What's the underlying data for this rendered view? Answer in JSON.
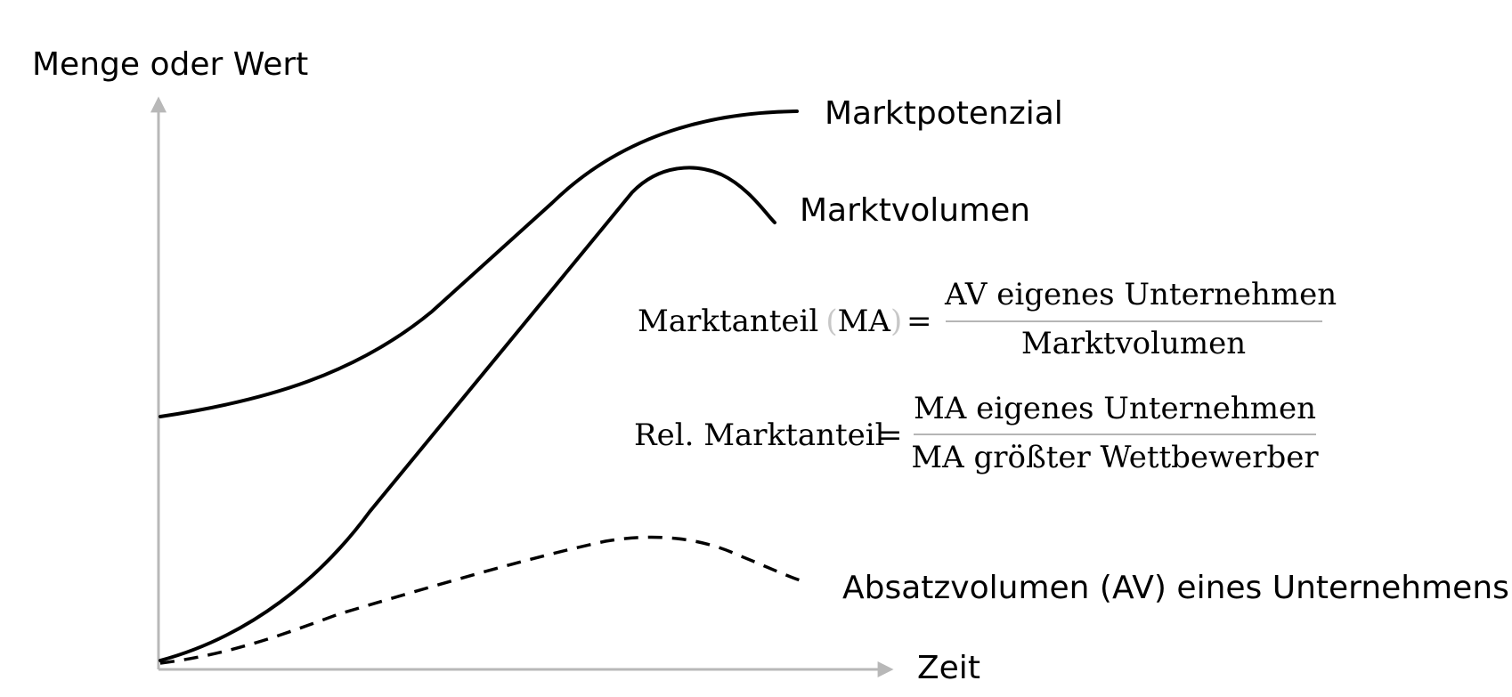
{
  "axes": {
    "y_label": "Menge oder Wert",
    "x_label": "Zeit",
    "color": "#b8b8b8"
  },
  "curves": {
    "marktpotenzial": "Marktpotenzial",
    "marktvolumen": "Marktvolumen",
    "absatzvolumen": "Absatzvolumen (AV) eines Unternehmens"
  },
  "formulas": {
    "marktanteil": {
      "lhs_name": "Marktanteil",
      "lhs_paren_open": "(",
      "lhs_abbr": "MA",
      "lhs_paren_close": ")",
      "equals": "=",
      "numerator": "AV eigenes Unternehmen",
      "denominator": "Marktvolumen"
    },
    "rel_marktanteil": {
      "lhs": "Rel. Marktanteil",
      "equals": "=",
      "numerator": "MA eigenes Unternehmen",
      "denominator": "MA größter Wettbewerber"
    }
  }
}
